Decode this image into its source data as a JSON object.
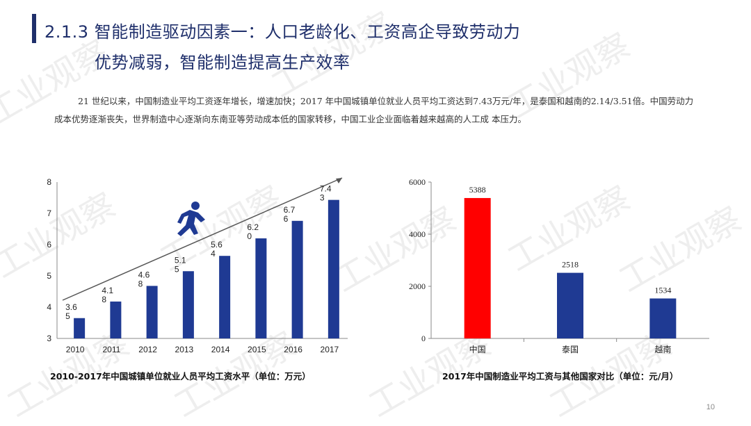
{
  "header": {
    "title_line1": "2.1.3 智能制造驱动因素一：人口老龄化、工资高企导致劳动力",
    "title_line2": "优势减弱，智能制造提高生产效率"
  },
  "body": {
    "paragraph": "21 世纪以来，中国制造业平均工资逐年增长，增速加快；2017 年中国城镇单位就业人员平均工资达到7.43万元/年，是泰国和越南的2.14/3.51倍。中国劳动力成本优势逐渐丧失，世界制造中心逐渐向东南亚等劳动成本低的国家转移，中国工业企业面临着越来越高的人工成 本压力。"
  },
  "watermark": {
    "text": "工业观察"
  },
  "colors": {
    "bar_blue": "#1f3a93",
    "bar_red": "#ff0000",
    "title_navy": "#1f2f6b"
  },
  "chart_data": [
    {
      "type": "bar",
      "icon": "running-person-icon",
      "categories": [
        "2010",
        "2011",
        "2012",
        "2013",
        "2014",
        "2015",
        "2016",
        "2017"
      ],
      "values": [
        3.65,
        4.18,
        4.68,
        5.15,
        5.64,
        6.2,
        6.76,
        7.43
      ],
      "data_labels": [
        [
          "3.6",
          "5"
        ],
        [
          "4.1",
          "8"
        ],
        [
          "4.6",
          "8"
        ],
        [
          "5.1",
          "5"
        ],
        [
          "5.6",
          "4"
        ],
        [
          "6.2",
          "0"
        ],
        [
          "6.7",
          "6"
        ],
        [
          "7.4",
          "3"
        ]
      ],
      "y_ticks": [
        "3",
        "4",
        "5",
        "6",
        "7",
        "8"
      ],
      "ylim": [
        3,
        8
      ],
      "caption": "2010-2017年中国城镇单位就业人员平均工资水平（单位：万元）",
      "color": "#1f3a93"
    },
    {
      "type": "bar",
      "categories": [
        "中国",
        "泰国",
        "越南"
      ],
      "values": [
        5388,
        2518,
        1534
      ],
      "data_labels": [
        "5388",
        "2518",
        "1534"
      ],
      "colors": [
        "#ff0000",
        "#1f3a93",
        "#1f3a93"
      ],
      "y_ticks": [
        "0",
        "2000",
        "4000",
        "6000"
      ],
      "ylim": [
        0,
        6000
      ],
      "caption": "2017年中国制造业平均工资与其他国家对比（单位：元/月）"
    }
  ],
  "footer": {
    "page_number": "10"
  }
}
